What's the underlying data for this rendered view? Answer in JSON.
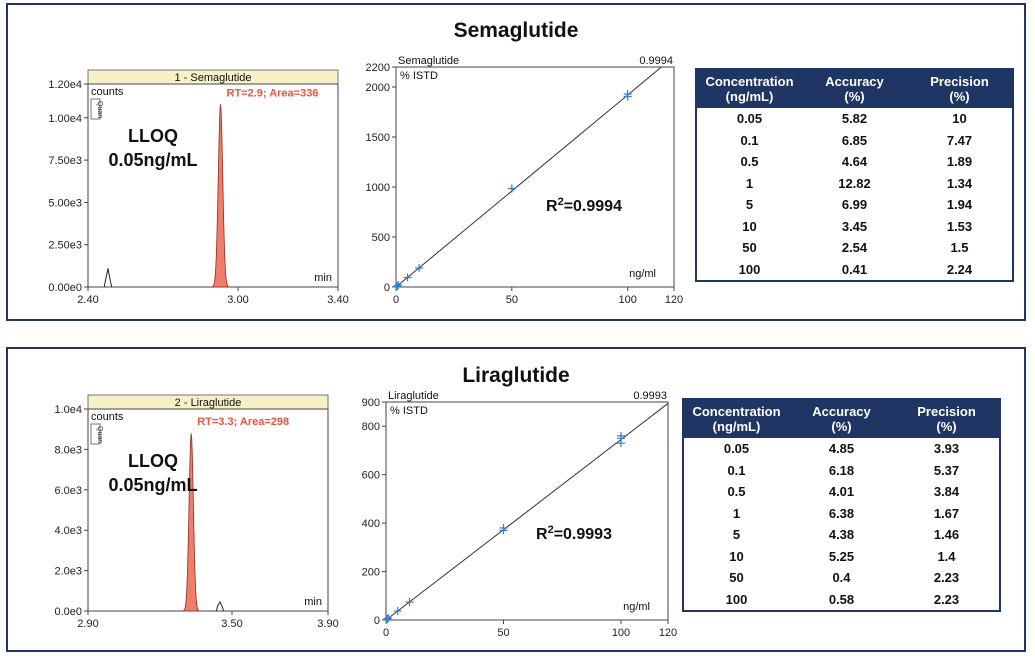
{
  "colors": {
    "frame": "#1f3564",
    "peak": "#f07c6c",
    "peak_label": "#e8553d",
    "fit_marker": "#3a7dc9",
    "header_bg": "#1f3564"
  },
  "chart_data": [
    {
      "title": "Semaglutide",
      "chromatogram": {
        "type": "area",
        "header": "1 - Semaglutide",
        "ylabel": "counts",
        "quan_tag": "Quan",
        "xlabel": "min",
        "xlim": [
          2.4,
          3.4
        ],
        "xticks": [
          "2.40",
          "3.00",
          "3.40"
        ],
        "ylim": [
          0,
          12000
        ],
        "yticks": [
          "0.00e0",
          "2.50e3",
          "5.00e3",
          "7.50e3",
          "1.00e4",
          "1.20e4"
        ],
        "peak": {
          "rt": 2.93,
          "height": 10800,
          "sigma": 0.009
        },
        "noise": [
          {
            "x": 2.47,
            "h": 400
          },
          {
            "x": 2.48,
            "h": 1100
          },
          {
            "x": 2.49,
            "h": 300
          }
        ],
        "peak_label": "RT=2.9; Area=336",
        "lloq_line1": "LLOQ",
        "lloq_line2": "0.05ng/mL"
      },
      "calibration": {
        "type": "scatter",
        "analyte": "Semaglutide",
        "r2_value": "0.9994",
        "ylabel": "% ISTD",
        "xlabel": "ng/ml",
        "xlim": [
          0,
          120
        ],
        "ylim": [
          0,
          2200
        ],
        "xticks": [
          "0",
          "50",
          "100",
          "120"
        ],
        "yticks": [
          "0",
          "500",
          "1000",
          "1500",
          "2000",
          "2200"
        ],
        "x": [
          0.05,
          0.1,
          0.5,
          1,
          5,
          10,
          50,
          100,
          100
        ],
        "y": [
          1,
          2,
          9,
          19,
          95,
          190,
          985,
          1905,
          1930
        ],
        "fit": {
          "slope": 19.2,
          "intercept": 0
        },
        "r2_prefix": "R",
        "r2_sup": "2",
        "r2_text": "=0.9994"
      },
      "table": {
        "headers": [
          {
            "l1": "Concentration",
            "l2": "(ng/mL)"
          },
          {
            "l1": "Accuracy",
            "l2": "(%)"
          },
          {
            "l1": "Precision",
            "l2": "(%)"
          }
        ],
        "rows": [
          [
            "0.05",
            "5.82",
            "10"
          ],
          [
            "0.1",
            "6.85",
            "7.47"
          ],
          [
            "0.5",
            "4.64",
            "1.89"
          ],
          [
            "1",
            "12.82",
            "1.34"
          ],
          [
            "5",
            "6.99",
            "1.94"
          ],
          [
            "10",
            "3.45",
            "1.53"
          ],
          [
            "50",
            "2.54",
            "1.5"
          ],
          [
            "100",
            "0.41",
            "2.24"
          ]
        ]
      }
    },
    {
      "title": "Liraglutide",
      "chromatogram": {
        "type": "area",
        "header": "2 - Liraglutide",
        "ylabel": "counts",
        "quan_tag": "Quan",
        "xlabel": "min",
        "xlim": [
          2.9,
          3.9
        ],
        "xticks": [
          "2.90",
          "3.50",
          "3.90"
        ],
        "ylim": [
          0,
          10000
        ],
        "yticks": [
          "0.0e0",
          "2.0e3",
          "4.0e3",
          "6.0e3",
          "8.0e3",
          "1.0e4"
        ],
        "peak": {
          "rt": 3.33,
          "height": 8800,
          "sigma": 0.009
        },
        "noise": [
          {
            "x": 3.44,
            "h": 250
          },
          {
            "x": 3.45,
            "h": 450
          },
          {
            "x": 3.46,
            "h": 200
          }
        ],
        "peak_label": "RT=3.3; Area=298",
        "lloq_line1": "LLOQ",
        "lloq_line2": "0.05ng/mL"
      },
      "calibration": {
        "type": "scatter",
        "analyte": "Liraglutide",
        "r2_value": "0.9993",
        "ylabel": "% ISTD",
        "xlabel": "ng/ml",
        "xlim": [
          0,
          120
        ],
        "ylim": [
          0,
          900
        ],
        "xticks": [
          "0",
          "50",
          "100",
          "120"
        ],
        "yticks": [
          "0",
          "200",
          "400",
          "600",
          "800",
          "900"
        ],
        "x": [
          0.05,
          0.1,
          0.5,
          1,
          5,
          10,
          50,
          50,
          100,
          100,
          100
        ],
        "y": [
          0.4,
          0.8,
          4,
          8,
          37,
          74,
          370,
          380,
          730,
          750,
          760
        ],
        "fit": {
          "slope": 7.45,
          "intercept": 0
        },
        "r2_prefix": "R",
        "r2_sup": "2",
        "r2_text": "=0.9993"
      },
      "table": {
        "headers": [
          {
            "l1": "Concentration",
            "l2": "(ng/mL)"
          },
          {
            "l1": "Accuracy",
            "l2": "(%)"
          },
          {
            "l1": "Precision",
            "l2": "(%)"
          }
        ],
        "rows": [
          [
            "0.05",
            "4.85",
            "3.93"
          ],
          [
            "0.1",
            "6.18",
            "5.37"
          ],
          [
            "0.5",
            "4.01",
            "3.84"
          ],
          [
            "1",
            "6.38",
            "1.67"
          ],
          [
            "5",
            "4.38",
            "1.46"
          ],
          [
            "10",
            "5.25",
            "1.4"
          ],
          [
            "50",
            "0.4",
            "2.23"
          ],
          [
            "100",
            "0.58",
            "2.23"
          ]
        ]
      }
    }
  ]
}
